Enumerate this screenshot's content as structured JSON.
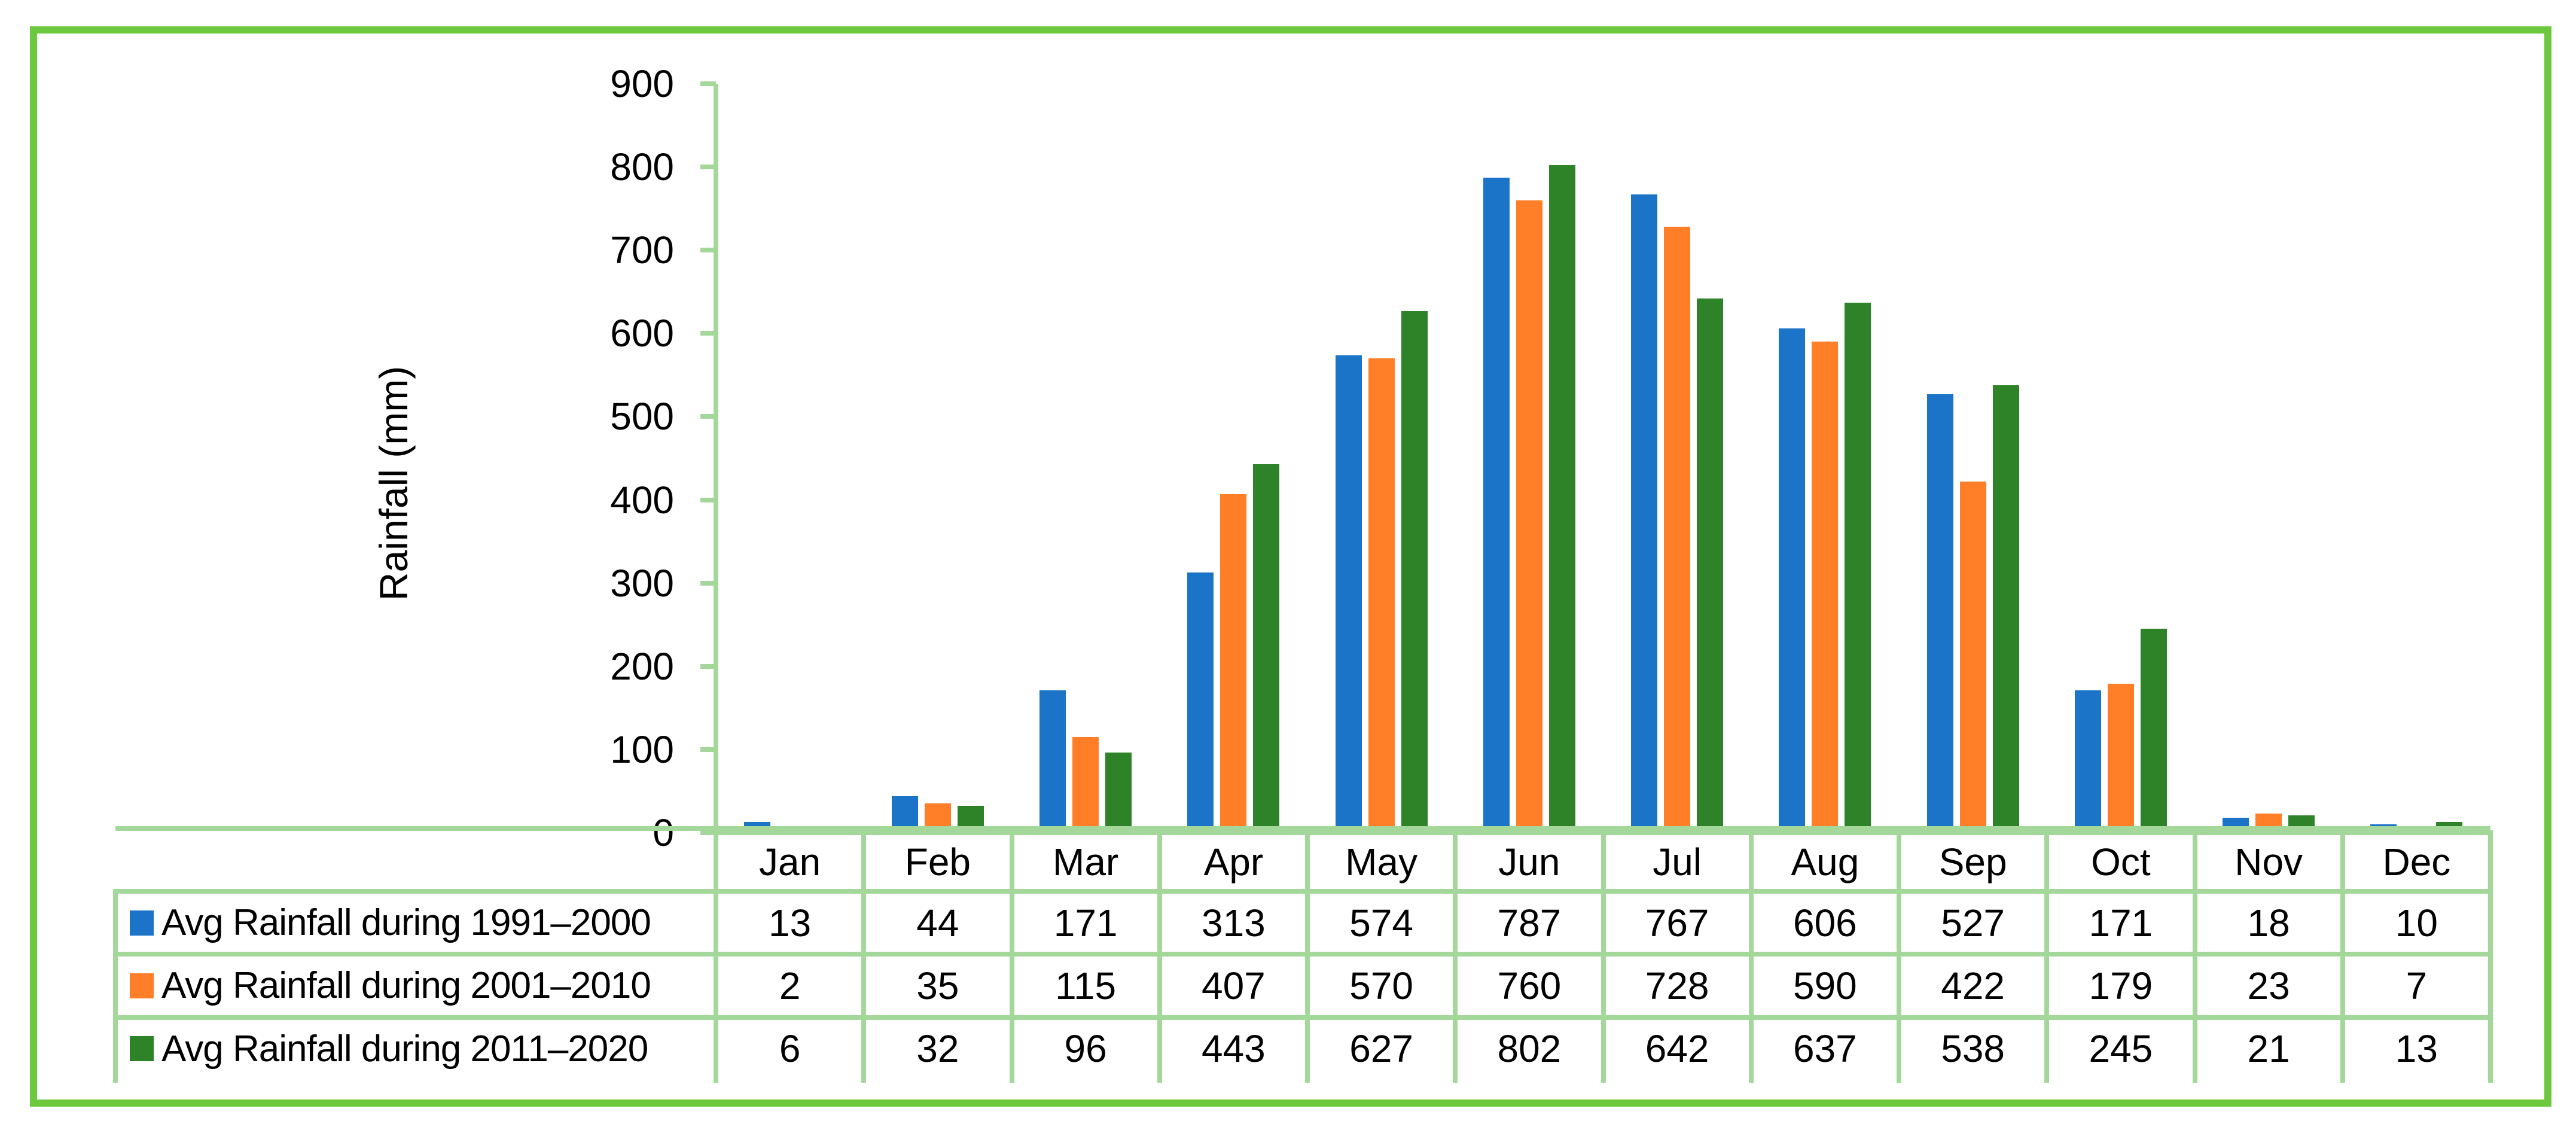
{
  "chart_data": {
    "type": "bar",
    "title": "",
    "xlabel": "",
    "ylabel": "Rainfall (mm)",
    "ylim": [
      0,
      900
    ],
    "ytick_step": 100,
    "grid": false,
    "legend_position": "table rows below chart (left column)",
    "categories": [
      "Jan",
      "Feb",
      "Mar",
      "Apr",
      "May",
      "Jun",
      "Jul",
      "Aug",
      "Sep",
      "Oct",
      "Nov",
      "Dec"
    ],
    "series": [
      {
        "name": "Avg Rainfall during 1991–2000",
        "color": "#1B74C8",
        "values": [
          13,
          44,
          171,
          313,
          574,
          787,
          767,
          606,
          527,
          171,
          18,
          10
        ]
      },
      {
        "name": "Avg Rainfall during 2001–2010",
        "color": "#FF7E27",
        "values": [
          2,
          35,
          115,
          407,
          570,
          760,
          728,
          590,
          422,
          179,
          23,
          7
        ]
      },
      {
        "name": "Avg Rainfall during 2011–2020",
        "color": "#2E8329",
        "values": [
          6,
          32,
          96,
          443,
          627,
          802,
          642,
          637,
          538,
          245,
          21,
          13
        ]
      }
    ],
    "colors": {
      "axis_and_table_lines": "#A4D79A",
      "outer_border": "#6CC93E",
      "text": "#000000",
      "background": "#FFFFFF"
    }
  }
}
